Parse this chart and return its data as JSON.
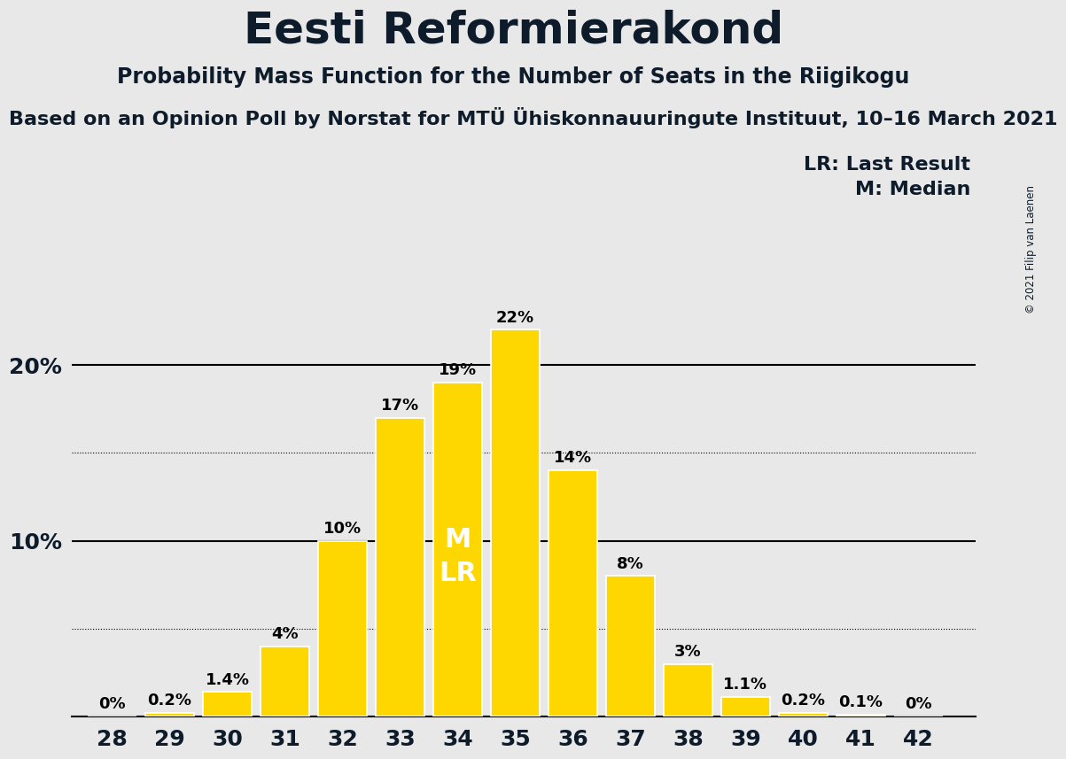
{
  "title": "Eesti Reformierakond",
  "subtitle": "Probability Mass Function for the Number of Seats in the Riigikogu",
  "source_line": "Based on an Opinion Poll by Norstat for MTÜ Ühiskonnauuringute Instituut, 10–16 March 2021",
  "copyright": "© 2021 Filip van Laenen",
  "categories": [
    28,
    29,
    30,
    31,
    32,
    33,
    34,
    35,
    36,
    37,
    38,
    39,
    40,
    41,
    42
  ],
  "values": [
    0.0,
    0.2,
    1.4,
    4.0,
    10.0,
    17.0,
    19.0,
    22.0,
    14.0,
    8.0,
    3.0,
    1.1,
    0.2,
    0.1,
    0.0
  ],
  "labels": [
    "0%",
    "0.2%",
    "1.4%",
    "4%",
    "10%",
    "17%",
    "19%",
    "22%",
    "14%",
    "8%",
    "3%",
    "1.1%",
    "0.2%",
    "0.1%",
    "0%"
  ],
  "bar_color": "#FFD700",
  "bar_edge_color": "#FFFFFF",
  "background_color": "#E8E8E8",
  "median_seat": 34,
  "lr_seat": 34,
  "median_label": "M",
  "lr_label": "LR",
  "legend_lr": "LR: Last Result",
  "legend_m": "M: Median",
  "ymax": 25,
  "solid_lines": [
    10,
    20
  ],
  "dotted_lines": [
    5,
    15
  ],
  "title_fontsize": 36,
  "subtitle_fontsize": 17,
  "source_fontsize": 16,
  "bar_label_fontsize": 13,
  "axis_label_fontsize": 18,
  "legend_fontsize": 16,
  "ml_label_fontsize": 22,
  "text_color_dark": "#0d1b2a",
  "ylabel_texts": [
    "10%",
    "20%"
  ]
}
